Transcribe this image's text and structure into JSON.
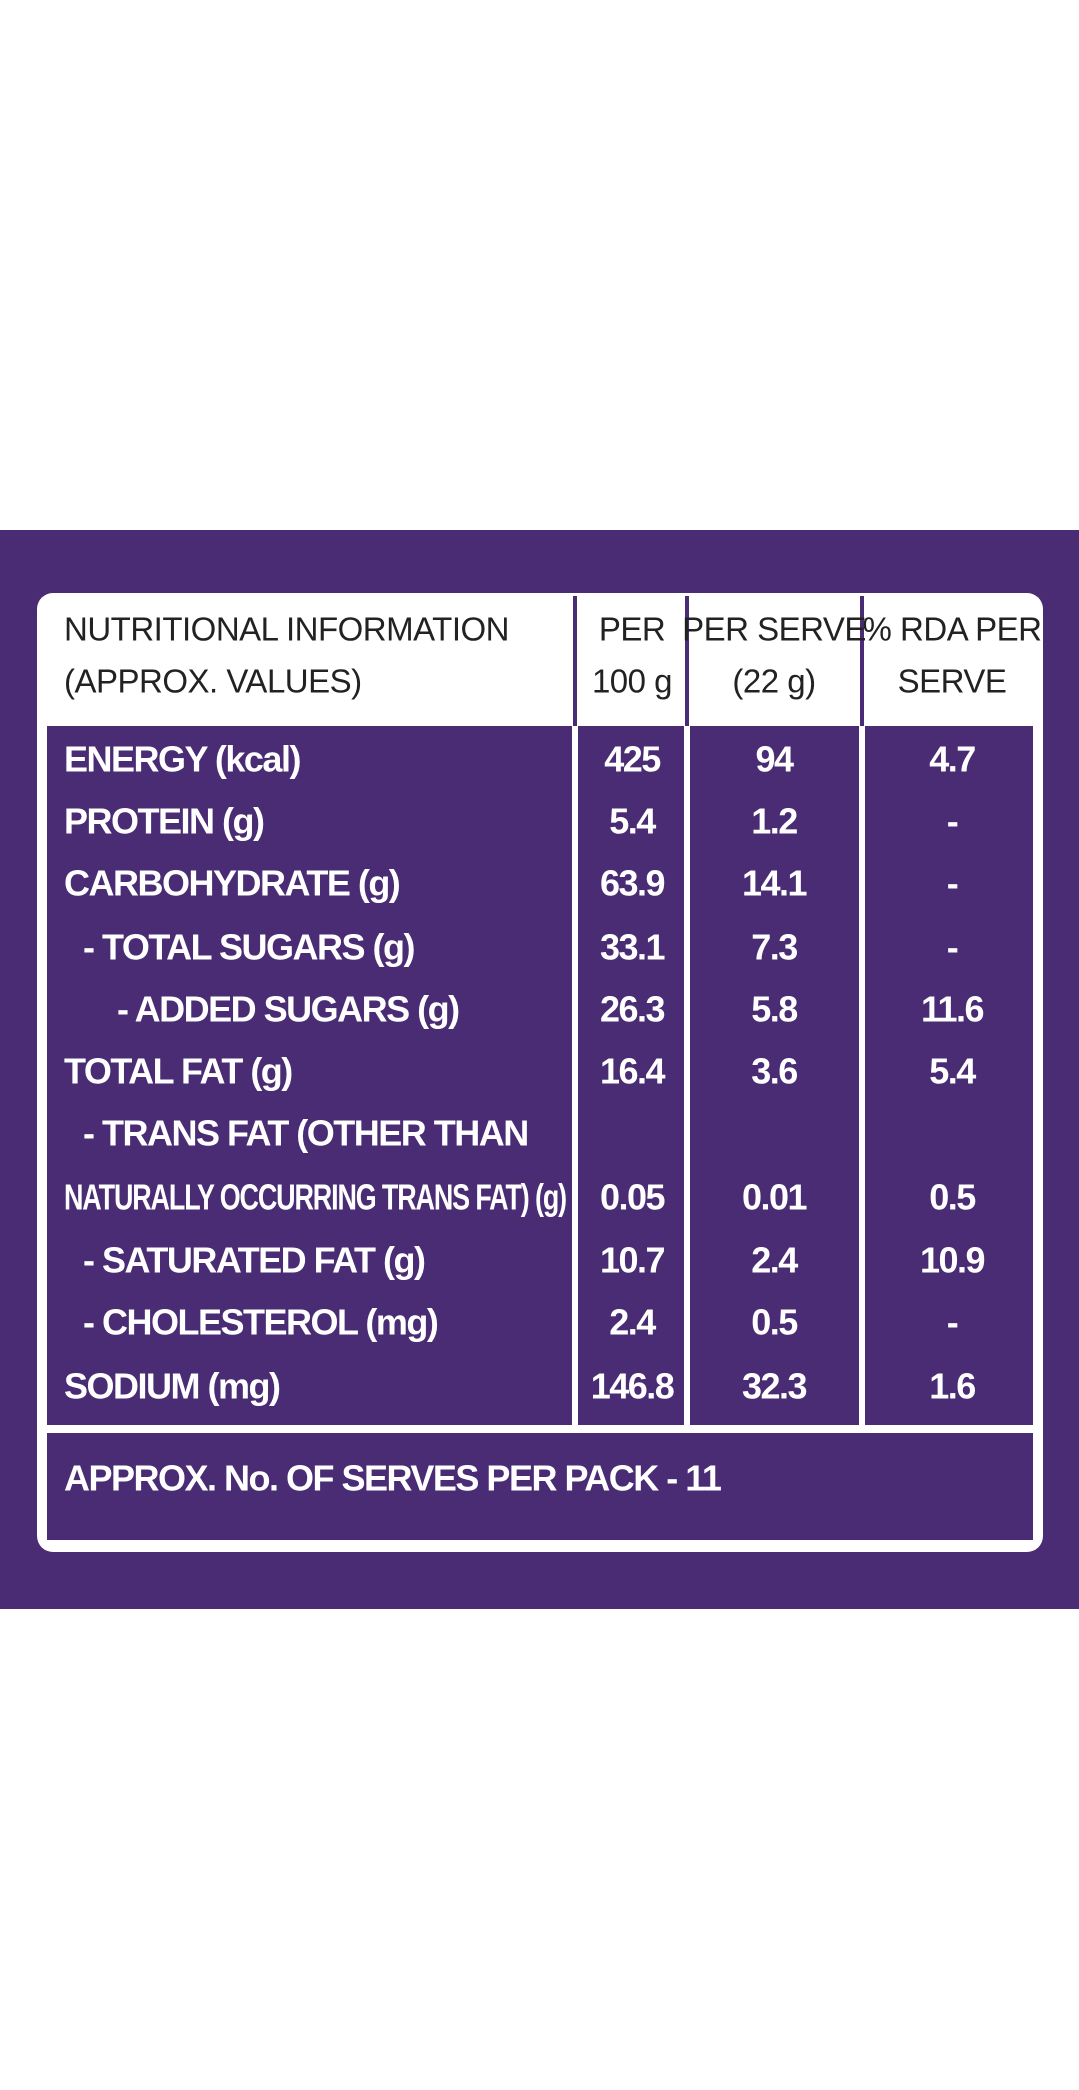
{
  "header": {
    "title": [
      "NUTRITIONAL INFORMATION",
      "(APPROX. VALUES)"
    ],
    "columns": [
      [
        "PER",
        "100 g"
      ],
      [
        "PER SERVE",
        "(22 g)"
      ],
      [
        "% RDA PER",
        "SERVE"
      ]
    ]
  },
  "rows": [
    {
      "label": [
        "ENERGY (kcal)"
      ],
      "values": [
        "425",
        "94",
        "4.7"
      ]
    },
    {
      "label": [
        "PROTEIN (g)"
      ],
      "values": [
        "5.4",
        "1.2",
        "-"
      ]
    },
    {
      "label": [
        "CARBOHYDRATE (g)"
      ],
      "values": [
        "63.9",
        "14.1",
        "-"
      ]
    },
    {
      "label": [
        "- TOTAL SUGARS (g)"
      ],
      "values": [
        "33.1",
        "7.3",
        "-"
      ]
    },
    {
      "label": [
        "- ADDED SUGARS (g)"
      ],
      "values": [
        "26.3",
        "5.8",
        "11.6"
      ]
    },
    {
      "label": [
        "TOTAL FAT (g)"
      ],
      "values": [
        "16.4",
        "3.6",
        "5.4"
      ]
    },
    {
      "label": [
        "- TRANS FAT (OTHER THAN",
        "NATURALLY OCCURRING TRANS FAT) (g)"
      ],
      "values": [
        "0.05",
        "0.01",
        "0.5"
      ]
    },
    {
      "label": [
        "- SATURATED FAT (g)"
      ],
      "values": [
        "10.7",
        "2.4",
        "10.9"
      ]
    },
    {
      "label": [
        "- CHOLESTEROL (mg)"
      ],
      "values": [
        "2.4",
        "0.5",
        "-"
      ]
    },
    {
      "label": [
        "SODIUM (mg)"
      ],
      "values": [
        "146.8",
        "32.3",
        "1.6"
      ]
    }
  ],
  "footer": "APPROX. No. OF SERVES PER PACK - 11"
}
